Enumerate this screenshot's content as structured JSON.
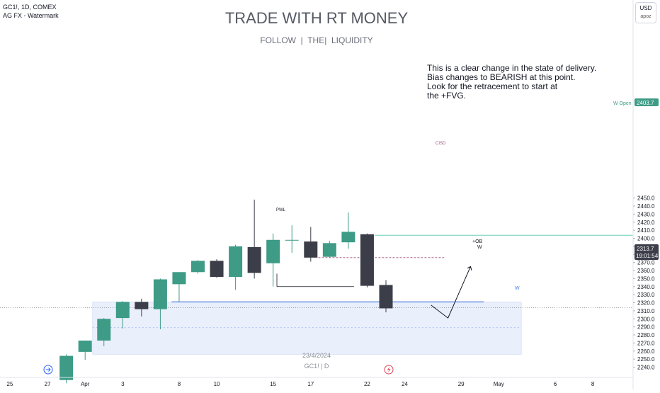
{
  "header": {
    "symbol_line": "GC1!, 1D, COMEX",
    "indicator_line": "AG FX - Watermark",
    "currency": "USD",
    "currency_sub": "apoz"
  },
  "watermark": {
    "title": "TRADE WITH RT MONEY",
    "subtitle": "FOLLOW  |  THE|  LIQUIDITY",
    "date": "23/4/2024",
    "symbol_tf": "GC1! | D"
  },
  "annotation": {
    "lines": [
      "This is a clear change in the state of delivery.",
      "Bias changes to BEARISH at this point.",
      "Look for the retracement to start at",
      "the +FVG."
    ]
  },
  "labels": {
    "w_open": "W Open",
    "cisd": "CISD",
    "pwl": "PWL",
    "ob": "+OB",
    "w1": "W",
    "w2": "W"
  },
  "price_tags": {
    "w_open_price": "2403.7",
    "last_price": "2313.7",
    "countdown": "19:01:54"
  },
  "colors": {
    "bull": "#3d9b86",
    "bear": "#3b3d48",
    "zone_fill": "#e3eafb",
    "ob_line": "#4a7ee0",
    "w_open_line": "#6ed0b8",
    "cisd_line": "#a0507a"
  },
  "chart_data": {
    "type": "candlestick",
    "y_axis": {
      "range": [
        2234,
        2458
      ],
      "ticks": [
        2240,
        2250,
        2260,
        2270,
        2280,
        2290,
        2300,
        2310,
        2320,
        2330,
        2340,
        2350,
        2360,
        2370,
        2380,
        2390,
        2400,
        2410,
        2420,
        2430,
        2440,
        2450
      ]
    },
    "x_axis": {
      "tick_labels": [
        {
          "label": "25",
          "slot": 0
        },
        {
          "label": "27",
          "slot": 2
        },
        {
          "label": "Apr",
          "slot": 4
        },
        {
          "label": "3",
          "slot": 6
        },
        {
          "label": "8",
          "slot": 9
        },
        {
          "label": "10",
          "slot": 11
        },
        {
          "label": "15",
          "slot": 14
        },
        {
          "label": "17",
          "slot": 16
        },
        {
          "label": "22",
          "slot": 19
        },
        {
          "label": "24",
          "slot": 21
        },
        {
          "label": "29",
          "slot": 24
        },
        {
          "label": "May",
          "slot": 26
        },
        {
          "label": "6",
          "slot": 29
        },
        {
          "label": "8",
          "slot": 31
        }
      ]
    },
    "candles": [
      {
        "slot": 3,
        "o": 2224,
        "h": 2256,
        "l": 2220,
        "c": 2254
      },
      {
        "slot": 4,
        "o": 2259,
        "h": 2273,
        "l": 2249,
        "c": 2273
      },
      {
        "slot": 5,
        "o": 2273,
        "h": 2301,
        "l": 2266,
        "c": 2300
      },
      {
        "slot": 6,
        "o": 2301,
        "h": 2322,
        "l": 2288,
        "c": 2321
      },
      {
        "slot": 7,
        "o": 2321,
        "h": 2325,
        "l": 2303,
        "c": 2312
      },
      {
        "slot": 8,
        "o": 2312,
        "h": 2350,
        "l": 2287,
        "c": 2349
      },
      {
        "slot": 9,
        "o": 2343,
        "h": 2358,
        "l": 2321,
        "c": 2358
      },
      {
        "slot": 10,
        "o": 2358,
        "h": 2373,
        "l": 2356,
        "c": 2372
      },
      {
        "slot": 11,
        "o": 2372,
        "h": 2374,
        "l": 2351,
        "c": 2352
      },
      {
        "slot": 12,
        "o": 2352,
        "h": 2392,
        "l": 2336,
        "c": 2390
      },
      {
        "slot": 13,
        "o": 2389,
        "h": 2448,
        "l": 2350,
        "c": 2357
      },
      {
        "slot": 14,
        "o": 2369,
        "h": 2406,
        "l": 2340,
        "c": 2398
      },
      {
        "slot": 15,
        "o": 2398,
        "h": 2416,
        "l": 2382,
        "c": 2398
      },
      {
        "slot": 16,
        "o": 2396,
        "h": 2414,
        "l": 2371,
        "c": 2376
      },
      {
        "slot": 17,
        "o": 2377,
        "h": 2397,
        "l": 2376,
        "c": 2394
      },
      {
        "slot": 18,
        "o": 2395,
        "h": 2432,
        "l": 2387,
        "c": 2408
      },
      {
        "slot": 19,
        "o": 2405,
        "h": 2406,
        "l": 2339,
        "c": 2341
      },
      {
        "slot": 20,
        "o": 2342,
        "h": 2348,
        "l": 2308,
        "c": 2313
      }
    ],
    "levels": {
      "w_open": 2403.7,
      "ob": 2321,
      "cisd": 2376,
      "pwl": 2340,
      "w_dotted": 2289,
      "last": 2313.7
    },
    "zone": {
      "top": 2321,
      "bottom": 2256,
      "from_slot": 4.4,
      "to_slot": 27.2
    },
    "projection": [
      {
        "slot": 22.4,
        "y": 2317
      },
      {
        "slot": 23.3,
        "y": 2301
      },
      {
        "slot": 24.5,
        "y": 2365
      }
    ]
  }
}
